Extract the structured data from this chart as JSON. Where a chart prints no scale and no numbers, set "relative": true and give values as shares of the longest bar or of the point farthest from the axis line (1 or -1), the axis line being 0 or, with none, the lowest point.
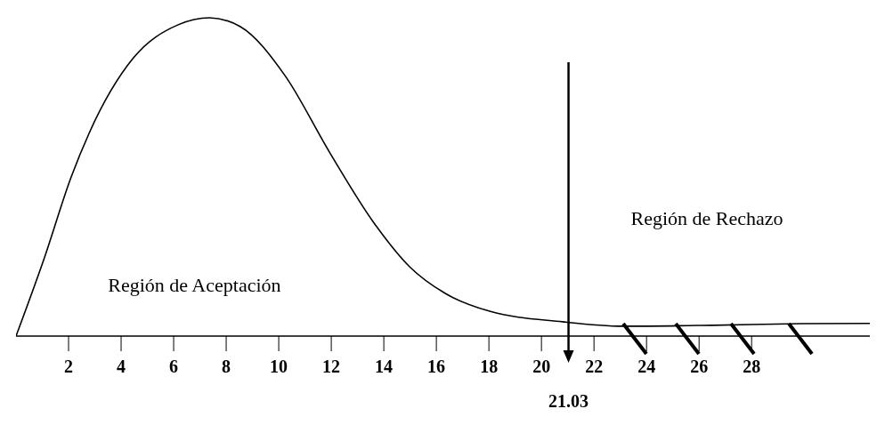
{
  "chart_data": {
    "type": "line",
    "relative": true,
    "x": [
      0,
      1.08,
      2.1,
      2.78,
      4.47,
      6.17,
      7.36,
      8.54,
      10.24,
      11.93,
      13.63,
      14.98,
      16.34,
      18.03,
      20.8,
      23.1,
      26.5,
      29.9,
      32.5
    ],
    "series": [
      {
        "color": "#000000",
        "values": [
          0,
          0.246,
          0.5,
          0.637,
          0.874,
          0.978,
          1,
          0.972,
          0.818,
          0.578,
          0.355,
          0.218,
          0.134,
          0.078,
          0.045,
          0.031,
          0.034,
          0.039,
          0.04
        ]
      }
    ],
    "xlim": [
      0,
      32.5
    ],
    "xticks": [
      2,
      4,
      6,
      8,
      10,
      12,
      14,
      16,
      18,
      20,
      22,
      24,
      26,
      28
    ],
    "ref_lines": [
      {
        "axis": "x",
        "value": 21.03,
        "label": "21.03"
      }
    ],
    "annotations": [
      "Región de Aceptación",
      "Región de Rechazo"
    ],
    "marker": "none",
    "line_style": "solid"
  }
}
